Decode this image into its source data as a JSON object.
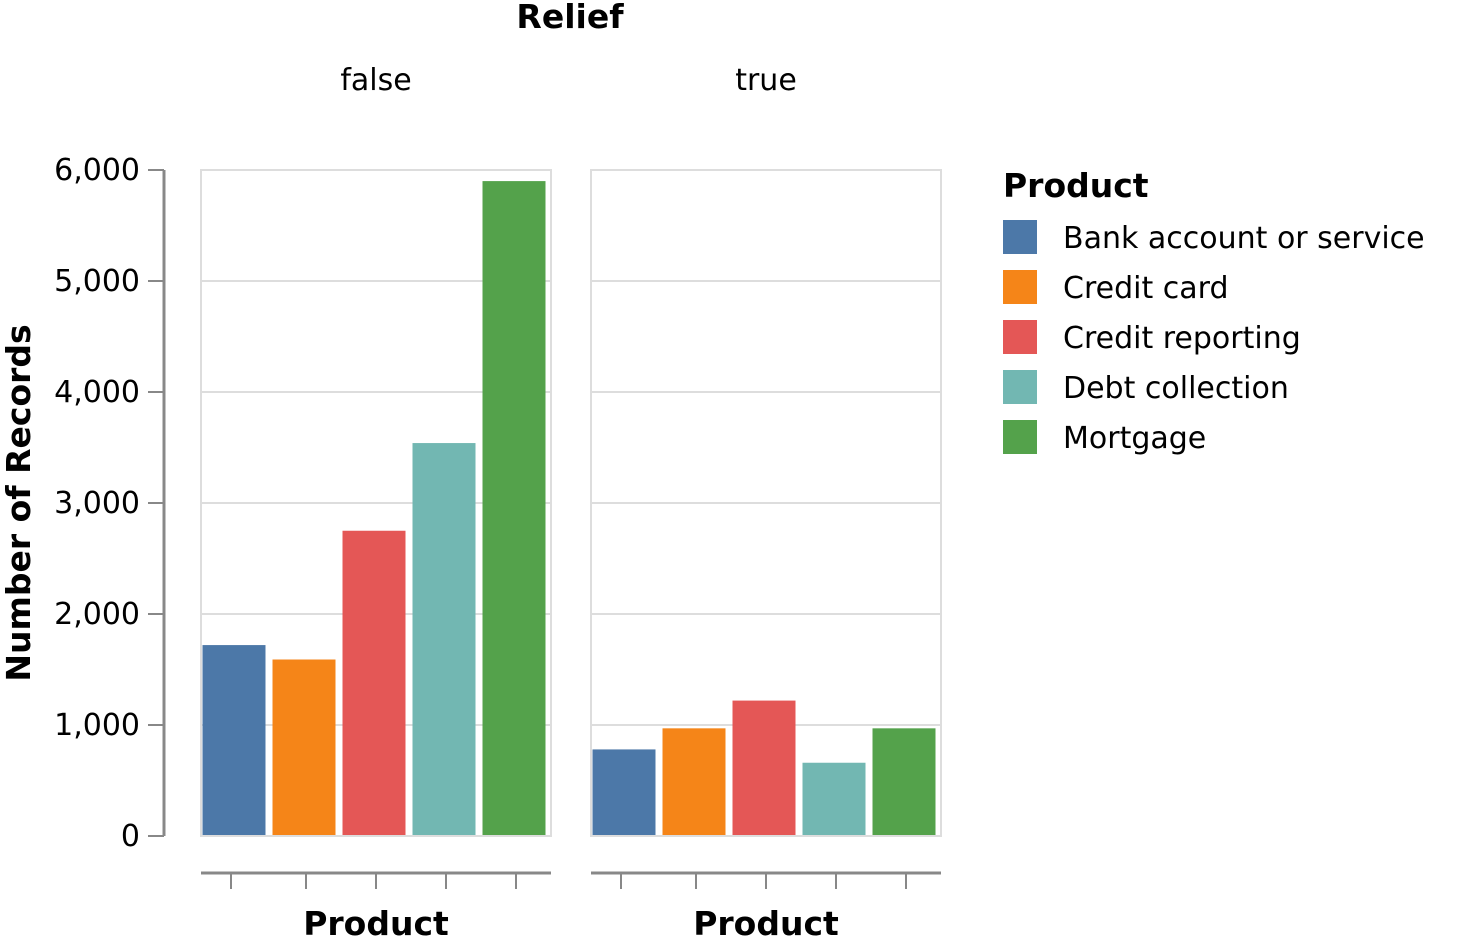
{
  "chart_data": {
    "type": "bar",
    "facet_title": "Relief",
    "facets": [
      "false",
      "true"
    ],
    "xlabel": "Product",
    "ylabel": "Number of Records",
    "ylim": [
      0,
      6000
    ],
    "yticks": [
      0,
      1000,
      2000,
      3000,
      4000,
      5000,
      6000
    ],
    "ytick_labels": [
      "0",
      "1,000",
      "2,000",
      "3,000",
      "4,000",
      "5,000",
      "6,000"
    ],
    "categories": [
      "Bank account or service",
      "Credit card",
      "Credit reporting",
      "Debt collection",
      "Mortgage"
    ],
    "colors": [
      "#4c78a8",
      "#f58518",
      "#e45756",
      "#72b7b2",
      "#54a24b"
    ],
    "series": [
      {
        "facet": "false",
        "values": [
          1720,
          1590,
          2750,
          3540,
          5900
        ]
      },
      {
        "facet": "true",
        "values": [
          780,
          970,
          1220,
          660,
          970
        ]
      }
    ],
    "legend": {
      "title": "Product",
      "position": "right"
    },
    "grid": true
  }
}
